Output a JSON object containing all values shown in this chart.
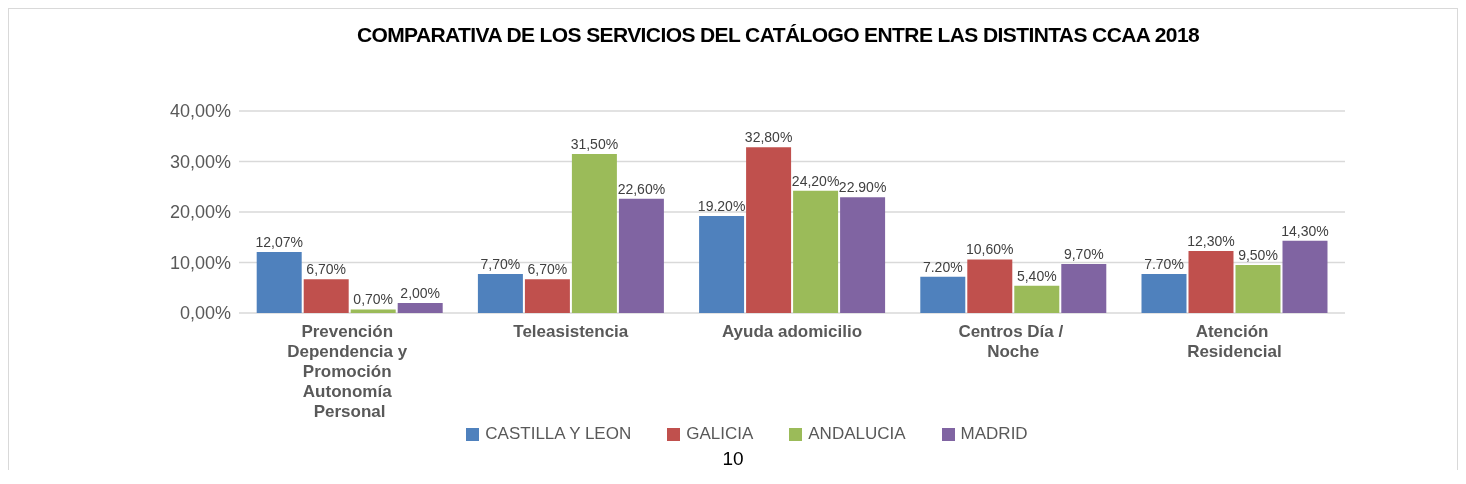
{
  "chart_data": {
    "type": "bar",
    "title": "COMPARATIVA DE LOS SERVICIOS DEL CATÁLOGO ENTRE LAS DISTINTAS CCAA 2018",
    "categories": [
      "Prevención Dependencia y Promoción Autonomía Personal",
      "Teleasistencia",
      "Ayuda adomicilio",
      "Centros Día / Noche",
      "Atención Residencial"
    ],
    "series": [
      {
        "name": "CASTILLA Y LEON",
        "color": "#4f81bd",
        "values": [
          12.07,
          7.7,
          19.2,
          7.2,
          7.7
        ],
        "value_labels": [
          "12,07%",
          "7,70%",
          "19.20%",
          "7.20%",
          "7.70%"
        ]
      },
      {
        "name": "GALICIA",
        "color": "#c0504d",
        "values": [
          6.7,
          6.7,
          32.8,
          10.6,
          12.3
        ],
        "value_labels": [
          "6,70%",
          "6,70%",
          "32,80%",
          "10,60%",
          "12,30%"
        ]
      },
      {
        "name": "ANDALUCIA",
        "color": "#9bbb59",
        "values": [
          0.7,
          31.5,
          24.2,
          5.4,
          9.5
        ],
        "value_labels": [
          "0,70%",
          "31,50%",
          "24,20%",
          "5,40%",
          "9,50%"
        ]
      },
      {
        "name": "MADRID",
        "color": "#8064a2",
        "values": [
          2.0,
          22.6,
          22.9,
          9.7,
          14.3
        ],
        "value_labels": [
          "2,00%",
          "22,60%",
          "22.90%",
          "9,70%",
          "14,30%"
        ]
      }
    ],
    "ylim": [
      0,
      40
    ],
    "yticks": [
      {
        "value": 0,
        "label": "0,00%"
      },
      {
        "value": 10,
        "label": "10,00%"
      },
      {
        "value": 20,
        "label": "20,00%"
      },
      {
        "value": 30,
        "label": "30,00%"
      },
      {
        "value": 40,
        "label": "40,00%"
      }
    ],
    "grid": "y",
    "legend": "bottom",
    "annotations": [
      "10"
    ]
  }
}
